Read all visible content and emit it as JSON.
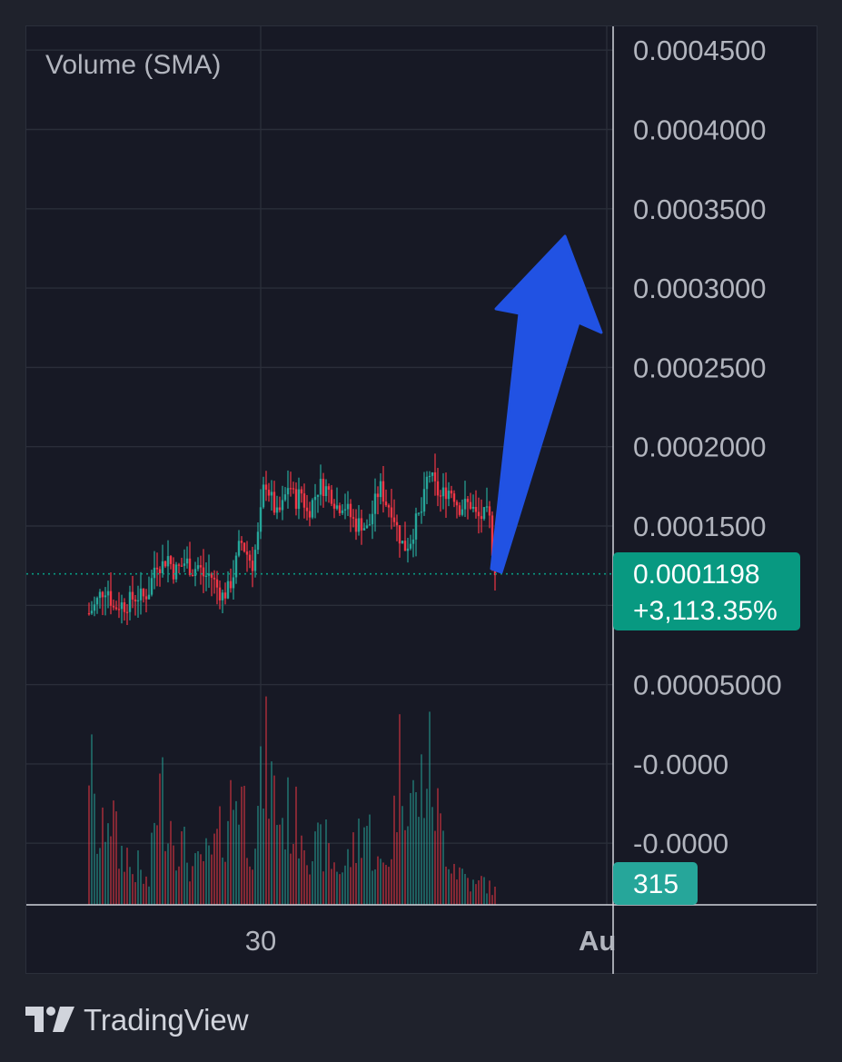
{
  "legend": {
    "indicator_label": "Volume (SMA)"
  },
  "price_axis": {
    "ticks": [
      {
        "value": 0.00045,
        "label": "0.0004500"
      },
      {
        "value": 0.0004,
        "label": "0.0004000"
      },
      {
        "value": 0.00035,
        "label": "0.0003500"
      },
      {
        "value": 0.0003,
        "label": "0.0003000"
      },
      {
        "value": 0.00025,
        "label": "0.0002500"
      },
      {
        "value": 0.0002,
        "label": "0.0002000"
      },
      {
        "value": 0.00015,
        "label": "0.0001500"
      },
      {
        "value": 5e-05,
        "label": "0.00005000"
      },
      {
        "value": 0.0,
        "label": "-0.0000"
      },
      {
        "value": -5e-05,
        "label": "-0.0000"
      }
    ]
  },
  "time_axis": {
    "labels": [
      "30",
      "Au"
    ]
  },
  "last_price": {
    "value": "0.0001198",
    "change": "+3,113.35%",
    "color": "#089981"
  },
  "volume_badge": {
    "value": "315",
    "color": "#26a69a"
  },
  "colors": {
    "up": "#26a69a",
    "down": "#f23645",
    "arrow": "#2152e3",
    "grid": "#2a2e39",
    "background": "#171925"
  },
  "branding": {
    "name": "TradingView"
  },
  "chart_data": {
    "type": "candlestick",
    "price_close_path": [
      9.5e-05,
      0.0001,
      0.000108,
      0.000112,
      9.8e-05,
      0.000101,
      0.0001,
      0.000104,
      0.000106,
      0.000105,
      0.00011,
      0.000128,
      0.000125,
      0.000131,
      0.000121,
      0.000124,
      0.000128,
      0.000122,
      0.000125,
      0.000118,
      0.00012,
      0.000112,
      0.000106,
      0.00011,
      0.000122,
      0.000141,
      0.000133,
      0.000126,
      0.000146,
      0.00018,
      0.000168,
      0.000156,
      0.000163,
      0.000178,
      0.000165,
      0.000172,
      0.000158,
      0.000166,
      0.000176,
      0.000174,
      0.00017,
      0.000162,
      0.000165,
      0.000157,
      0.000151,
      0.000152,
      0.000147,
      0.000162,
      0.000175,
      0.000165,
      0.000161,
      0.000146,
      0.000136,
      0.000141,
      0.000153,
      0.00016,
      0.000185,
      0.000175,
      0.000168,
      0.000173,
      0.000172,
      0.000162,
      0.000163,
      0.000164,
      0.000155,
      0.000156,
      0.000157,
      0.000119
    ],
    "volume_shape": [
      0.92,
      0.45,
      0.3,
      0.62,
      0.48,
      0.27,
      0.33,
      0.18,
      0.22,
      0.14,
      0.12,
      0.58,
      0.65,
      0.55,
      0.42,
      0.35,
      0.3,
      0.2,
      0.22,
      0.28,
      0.25,
      0.35,
      0.4,
      0.55,
      0.62,
      0.72,
      0.45,
      0.38,
      0.52,
      0.85,
      0.7,
      0.55,
      0.48,
      0.52,
      0.45,
      0.5,
      0.38,
      0.3,
      0.32,
      0.35,
      0.25,
      0.22,
      0.2,
      0.28,
      0.32,
      0.48,
      0.45,
      0.3,
      0.2,
      0.24,
      0.36,
      0.78,
      0.85,
      0.65,
      0.55,
      0.7,
      0.82,
      0.62,
      0.42,
      0.35,
      0.25,
      0.2,
      0.18,
      0.12,
      0.1,
      0.15,
      0.1,
      0.08
    ]
  }
}
